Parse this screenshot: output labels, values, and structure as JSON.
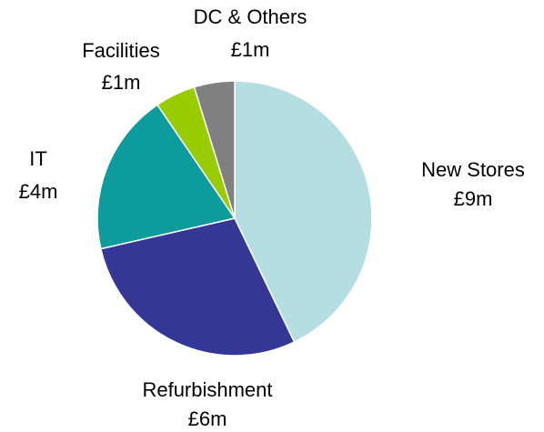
{
  "chart_data": {
    "type": "pie",
    "categories": [
      "New Stores",
      "Refurbishment",
      "IT",
      "Facilities",
      "DC & Others"
    ],
    "values": [
      9,
      6,
      4,
      1,
      1
    ],
    "value_labels": [
      "£9m",
      "£6m",
      "£4m",
      "£1m",
      "£1m"
    ],
    "colors": [
      "#b4dee1",
      "#353797",
      "#0e9b9b",
      "#99cc00",
      "#808080"
    ]
  }
}
